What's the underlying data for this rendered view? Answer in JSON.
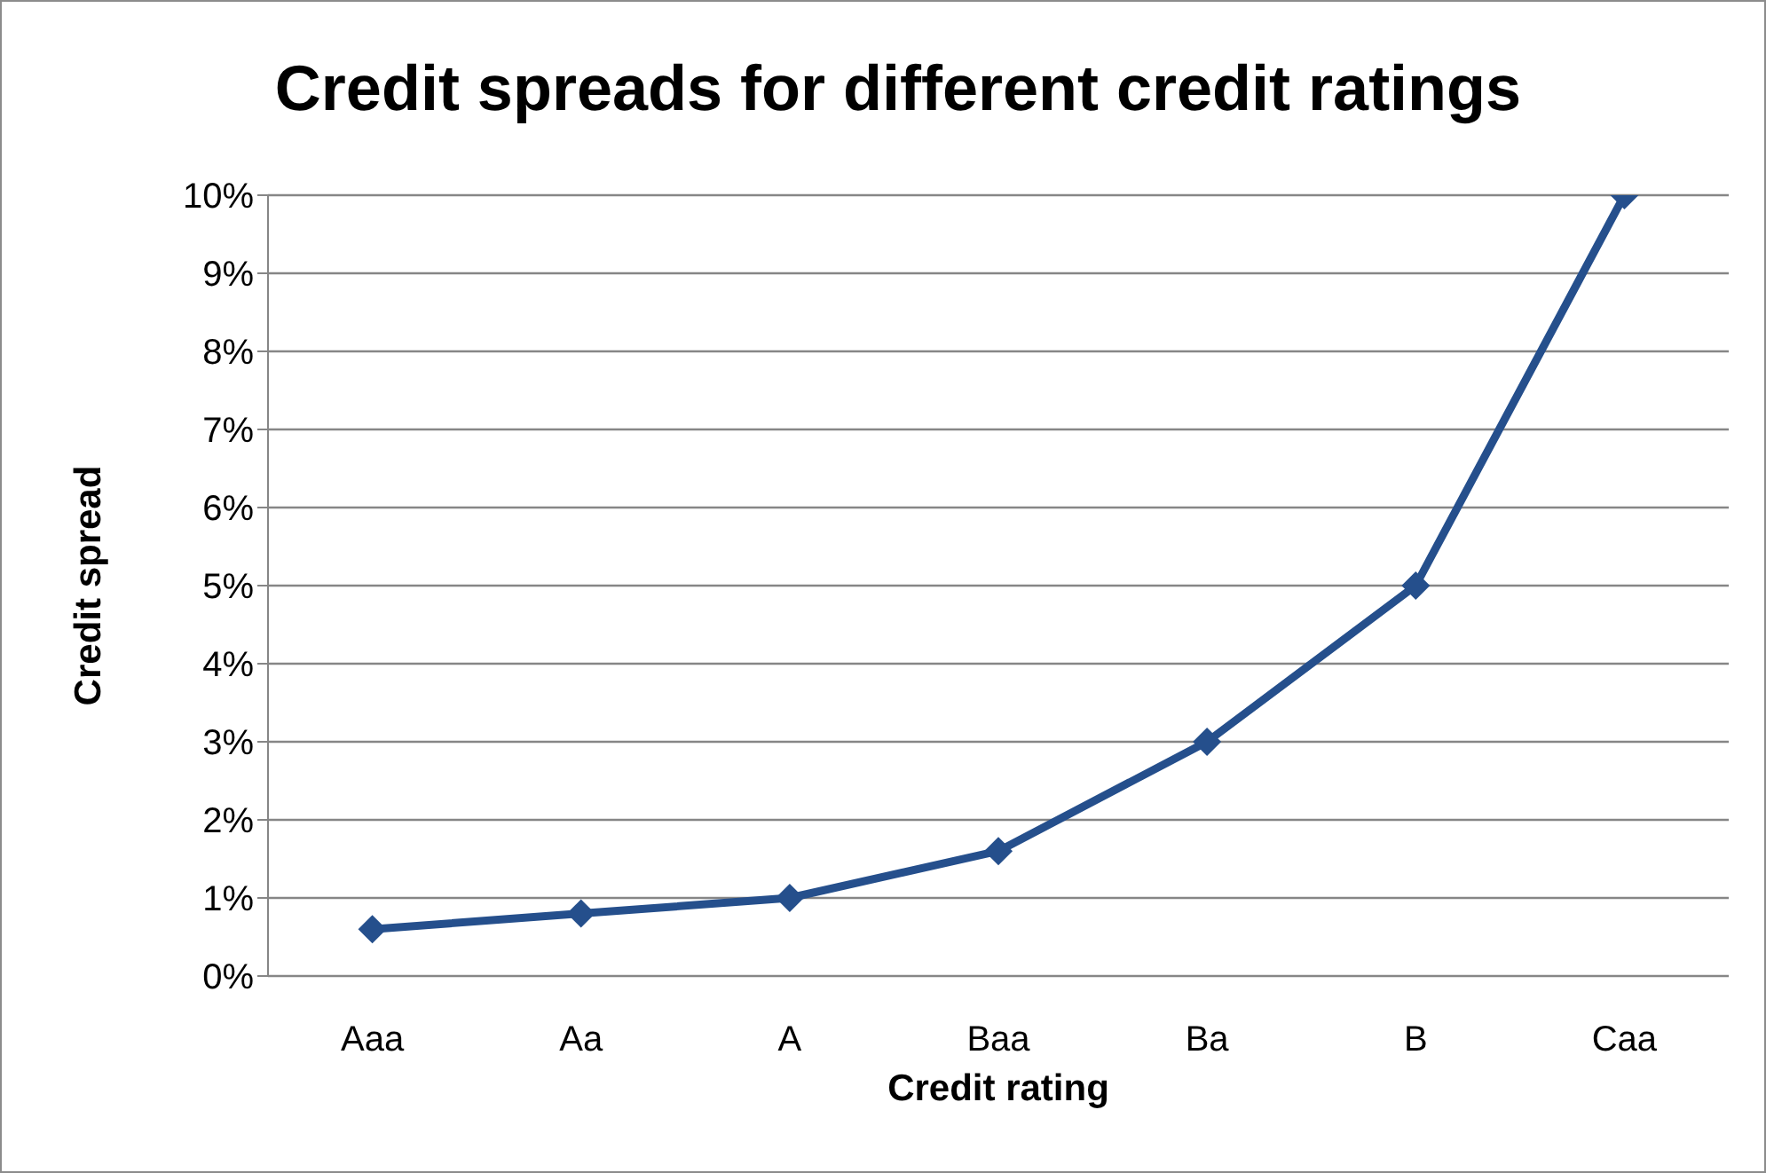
{
  "chart_data": {
    "type": "line",
    "title": "Credit spreads for different credit ratings",
    "xlabel": "Credit rating",
    "ylabel": "Credit spread",
    "categories": [
      "Aaa",
      "Aa",
      "A",
      "Baa",
      "Ba",
      "B",
      "Caa"
    ],
    "series": [
      {
        "color": "#254f8c",
        "values": [
          0.6,
          0.8,
          1.0,
          1.6,
          3.0,
          5.0,
          10.0
        ]
      }
    ],
    "ylim": [
      0,
      10
    ],
    "yticks": [
      {
        "value": 0,
        "label": "0%"
      },
      {
        "value": 1,
        "label": "1%"
      },
      {
        "value": 2,
        "label": "2%"
      },
      {
        "value": 3,
        "label": "3%"
      },
      {
        "value": 4,
        "label": "4%"
      },
      {
        "value": 5,
        "label": "5%"
      },
      {
        "value": 6,
        "label": "6%"
      },
      {
        "value": 7,
        "label": "7%"
      },
      {
        "value": 8,
        "label": "8%"
      },
      {
        "value": 9,
        "label": "9%"
      },
      {
        "value": 10,
        "label": "10%"
      }
    ],
    "grid": "y",
    "legend": false,
    "marker": "diamond",
    "line_style": "solid"
  }
}
